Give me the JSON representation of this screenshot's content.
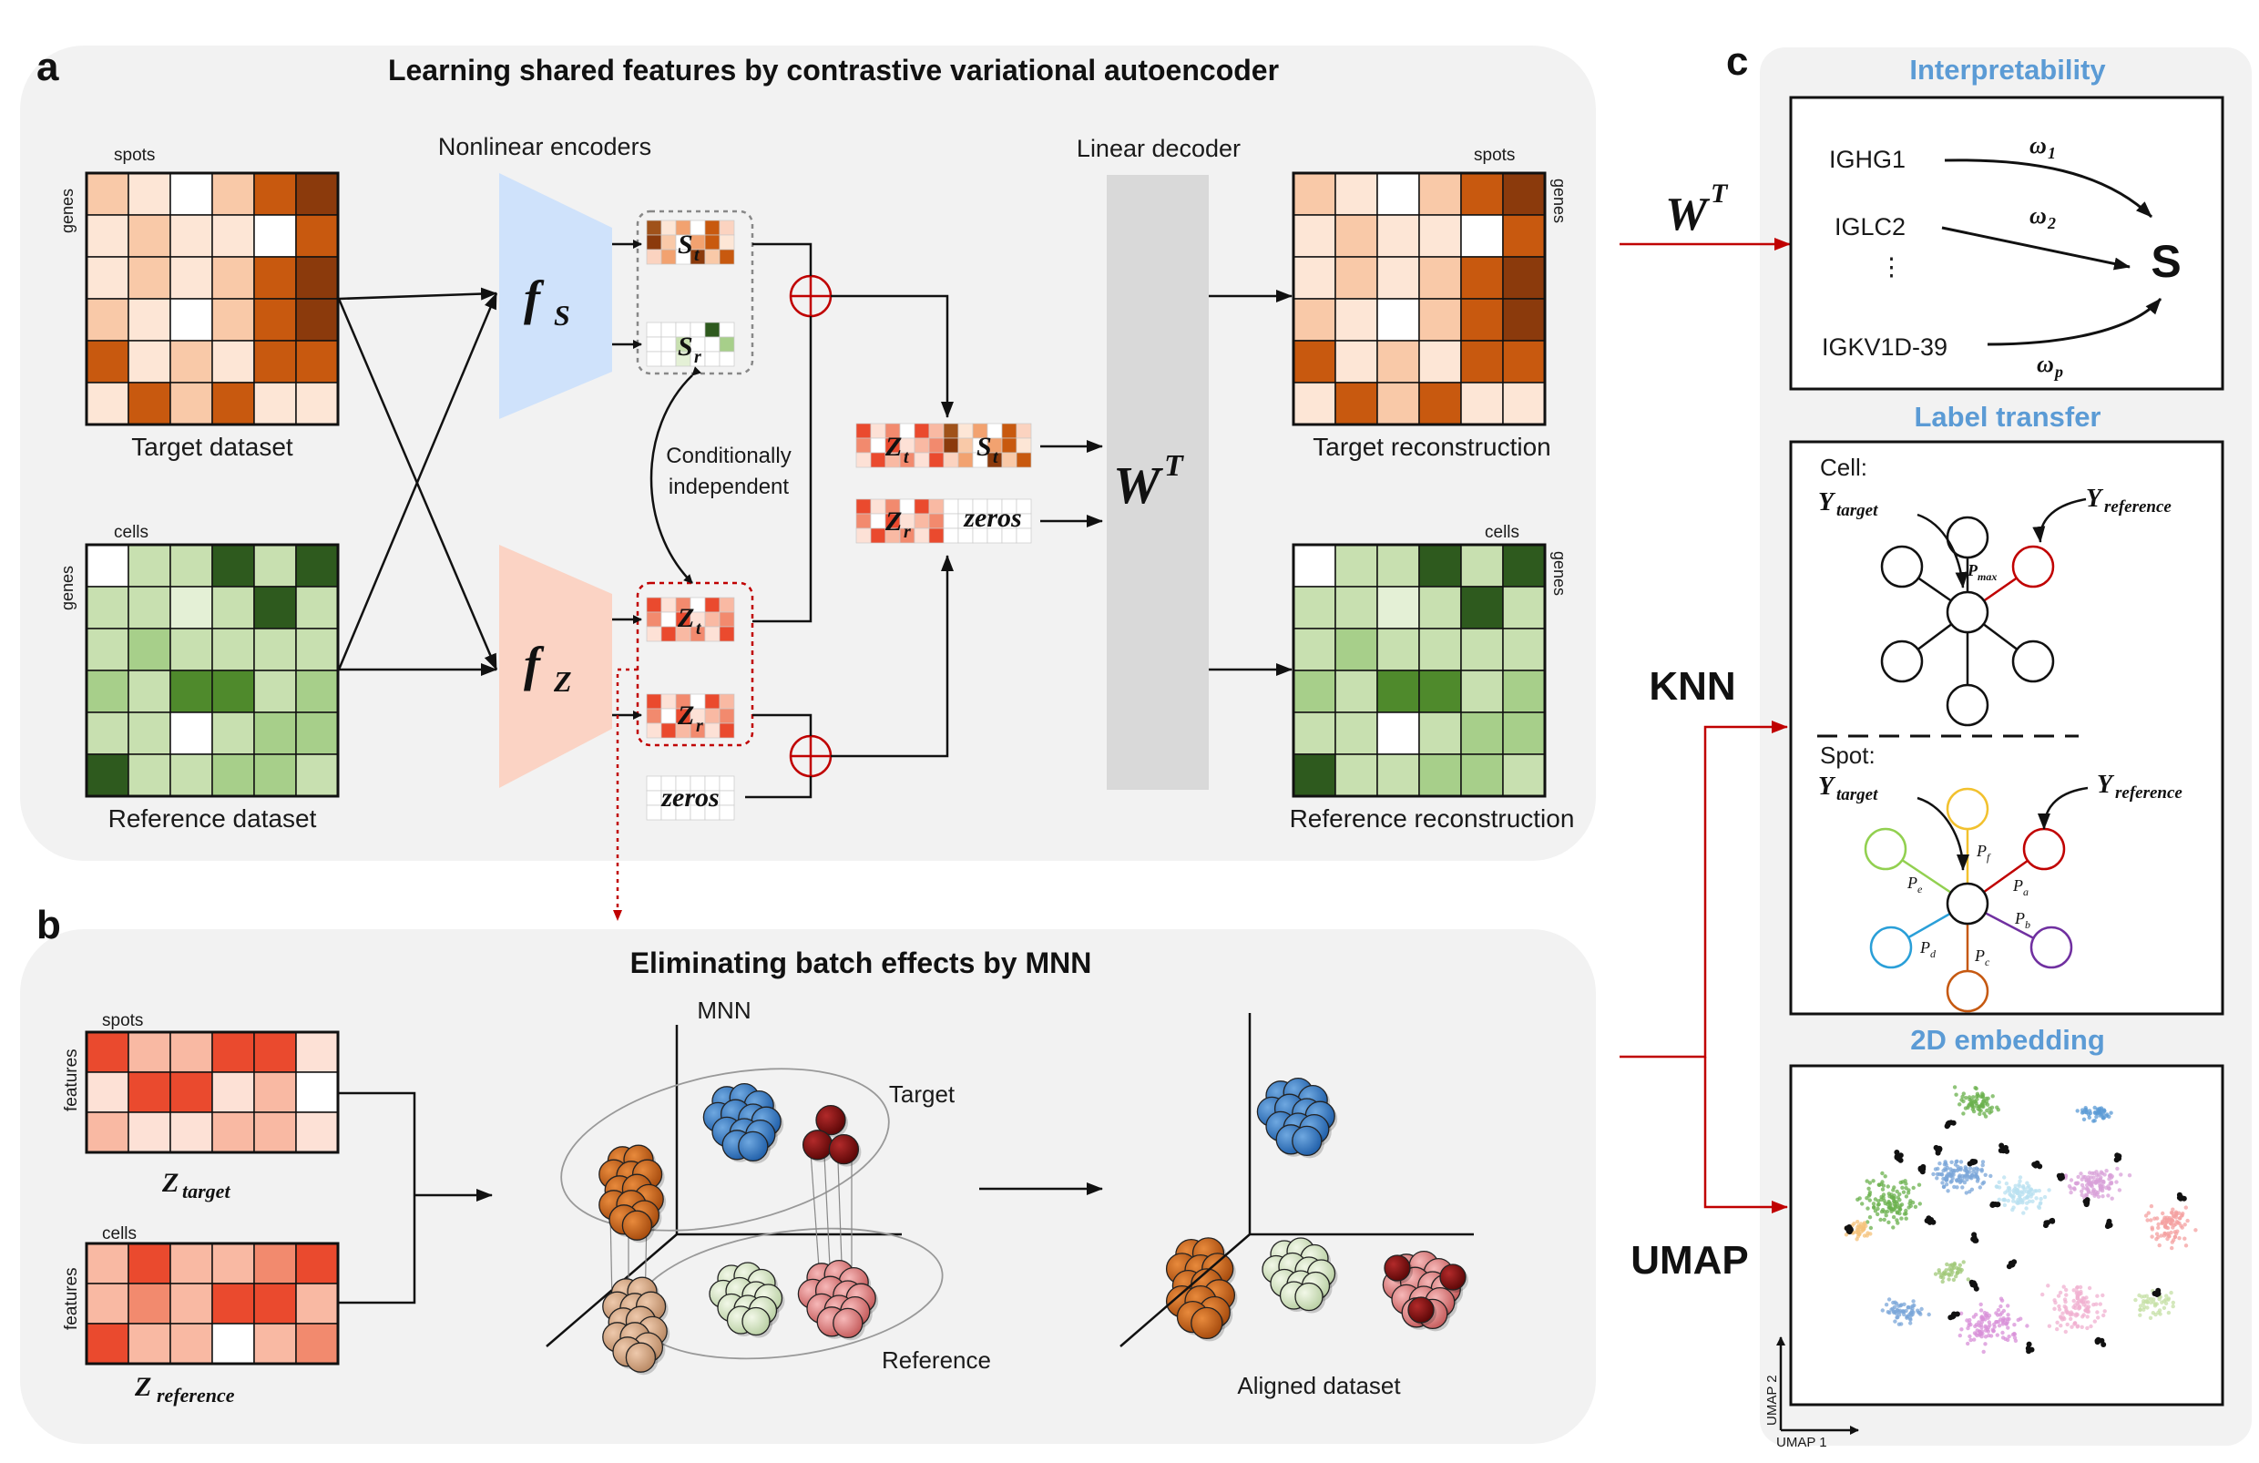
{
  "panels": {
    "a": {
      "letter": "a",
      "title": "Learning shared features by contrastive variational autoencoder"
    },
    "b": {
      "letter": "b",
      "title": "Eliminating batch effects by MNN"
    },
    "c": {
      "letter": "c"
    }
  },
  "encoders": {
    "label": "Nonlinear encoders",
    "fs": "f",
    "fs_sub": "S",
    "fz": "f",
    "fz_sub": "Z"
  },
  "decoder": {
    "label": "Linear decoder",
    "w": "W",
    "sup": "T"
  },
  "matrices": {
    "target_dataset": "Target dataset",
    "reference_dataset": "Reference dataset",
    "target_recon": "Target reconstruction",
    "reference_recon": "Reference reconstruction",
    "spots": "spots",
    "cells": "cells",
    "genes": "genes",
    "features": "features"
  },
  "latents": {
    "st": "S",
    "st_sub": "t",
    "sr": "S",
    "sr_sub": "r",
    "zt": "Z",
    "zt_sub": "t",
    "zr": "Z",
    "zr_sub": "r",
    "zeros": "zeros"
  },
  "cond_indep": {
    "line1": "Conditionally",
    "line2": "independent"
  },
  "mnn": {
    "label": "MNN",
    "target": "Target",
    "reference": "Reference",
    "aligned": "Aligned dataset",
    "z_target": "Z",
    "z_target_sub": "target",
    "z_reference": "Z",
    "z_reference_sub": "reference"
  },
  "connectors": {
    "wt": "W",
    "wt_sup": "T",
    "knn": "KNN",
    "umap": "UMAP"
  },
  "interpretability": {
    "title": "Interpretability",
    "genes": [
      "IGHG1",
      "IGLC2",
      "⋮",
      "IGKV1D-39"
    ],
    "weights": [
      {
        "w": "ω",
        "sub": "1"
      },
      {
        "w": "ω",
        "sub": "2"
      },
      {
        "w": "ω",
        "sub": "p"
      }
    ],
    "output": "S"
  },
  "label_transfer": {
    "title": "Label transfer",
    "cell": "Cell:",
    "spot": "Spot:",
    "y": "Y",
    "y_target_sub": "target",
    "y_reference_sub": "reference",
    "p": "P",
    "p_subs": [
      "max",
      "a",
      "b",
      "c",
      "d",
      "e",
      "f"
    ]
  },
  "embedding": {
    "title": "2D embedding",
    "xlabel": "UMAP 1",
    "ylabel": "UMAP 2"
  },
  "colors": {
    "panel_bg": "#f2f2f2",
    "title_blue": "#5b9bd5",
    "red_arrow": "#c00000",
    "encoder_s": "#cfe2fb",
    "encoder_z": "#fbd3c4",
    "decoder": "#d9d9d9"
  }
}
